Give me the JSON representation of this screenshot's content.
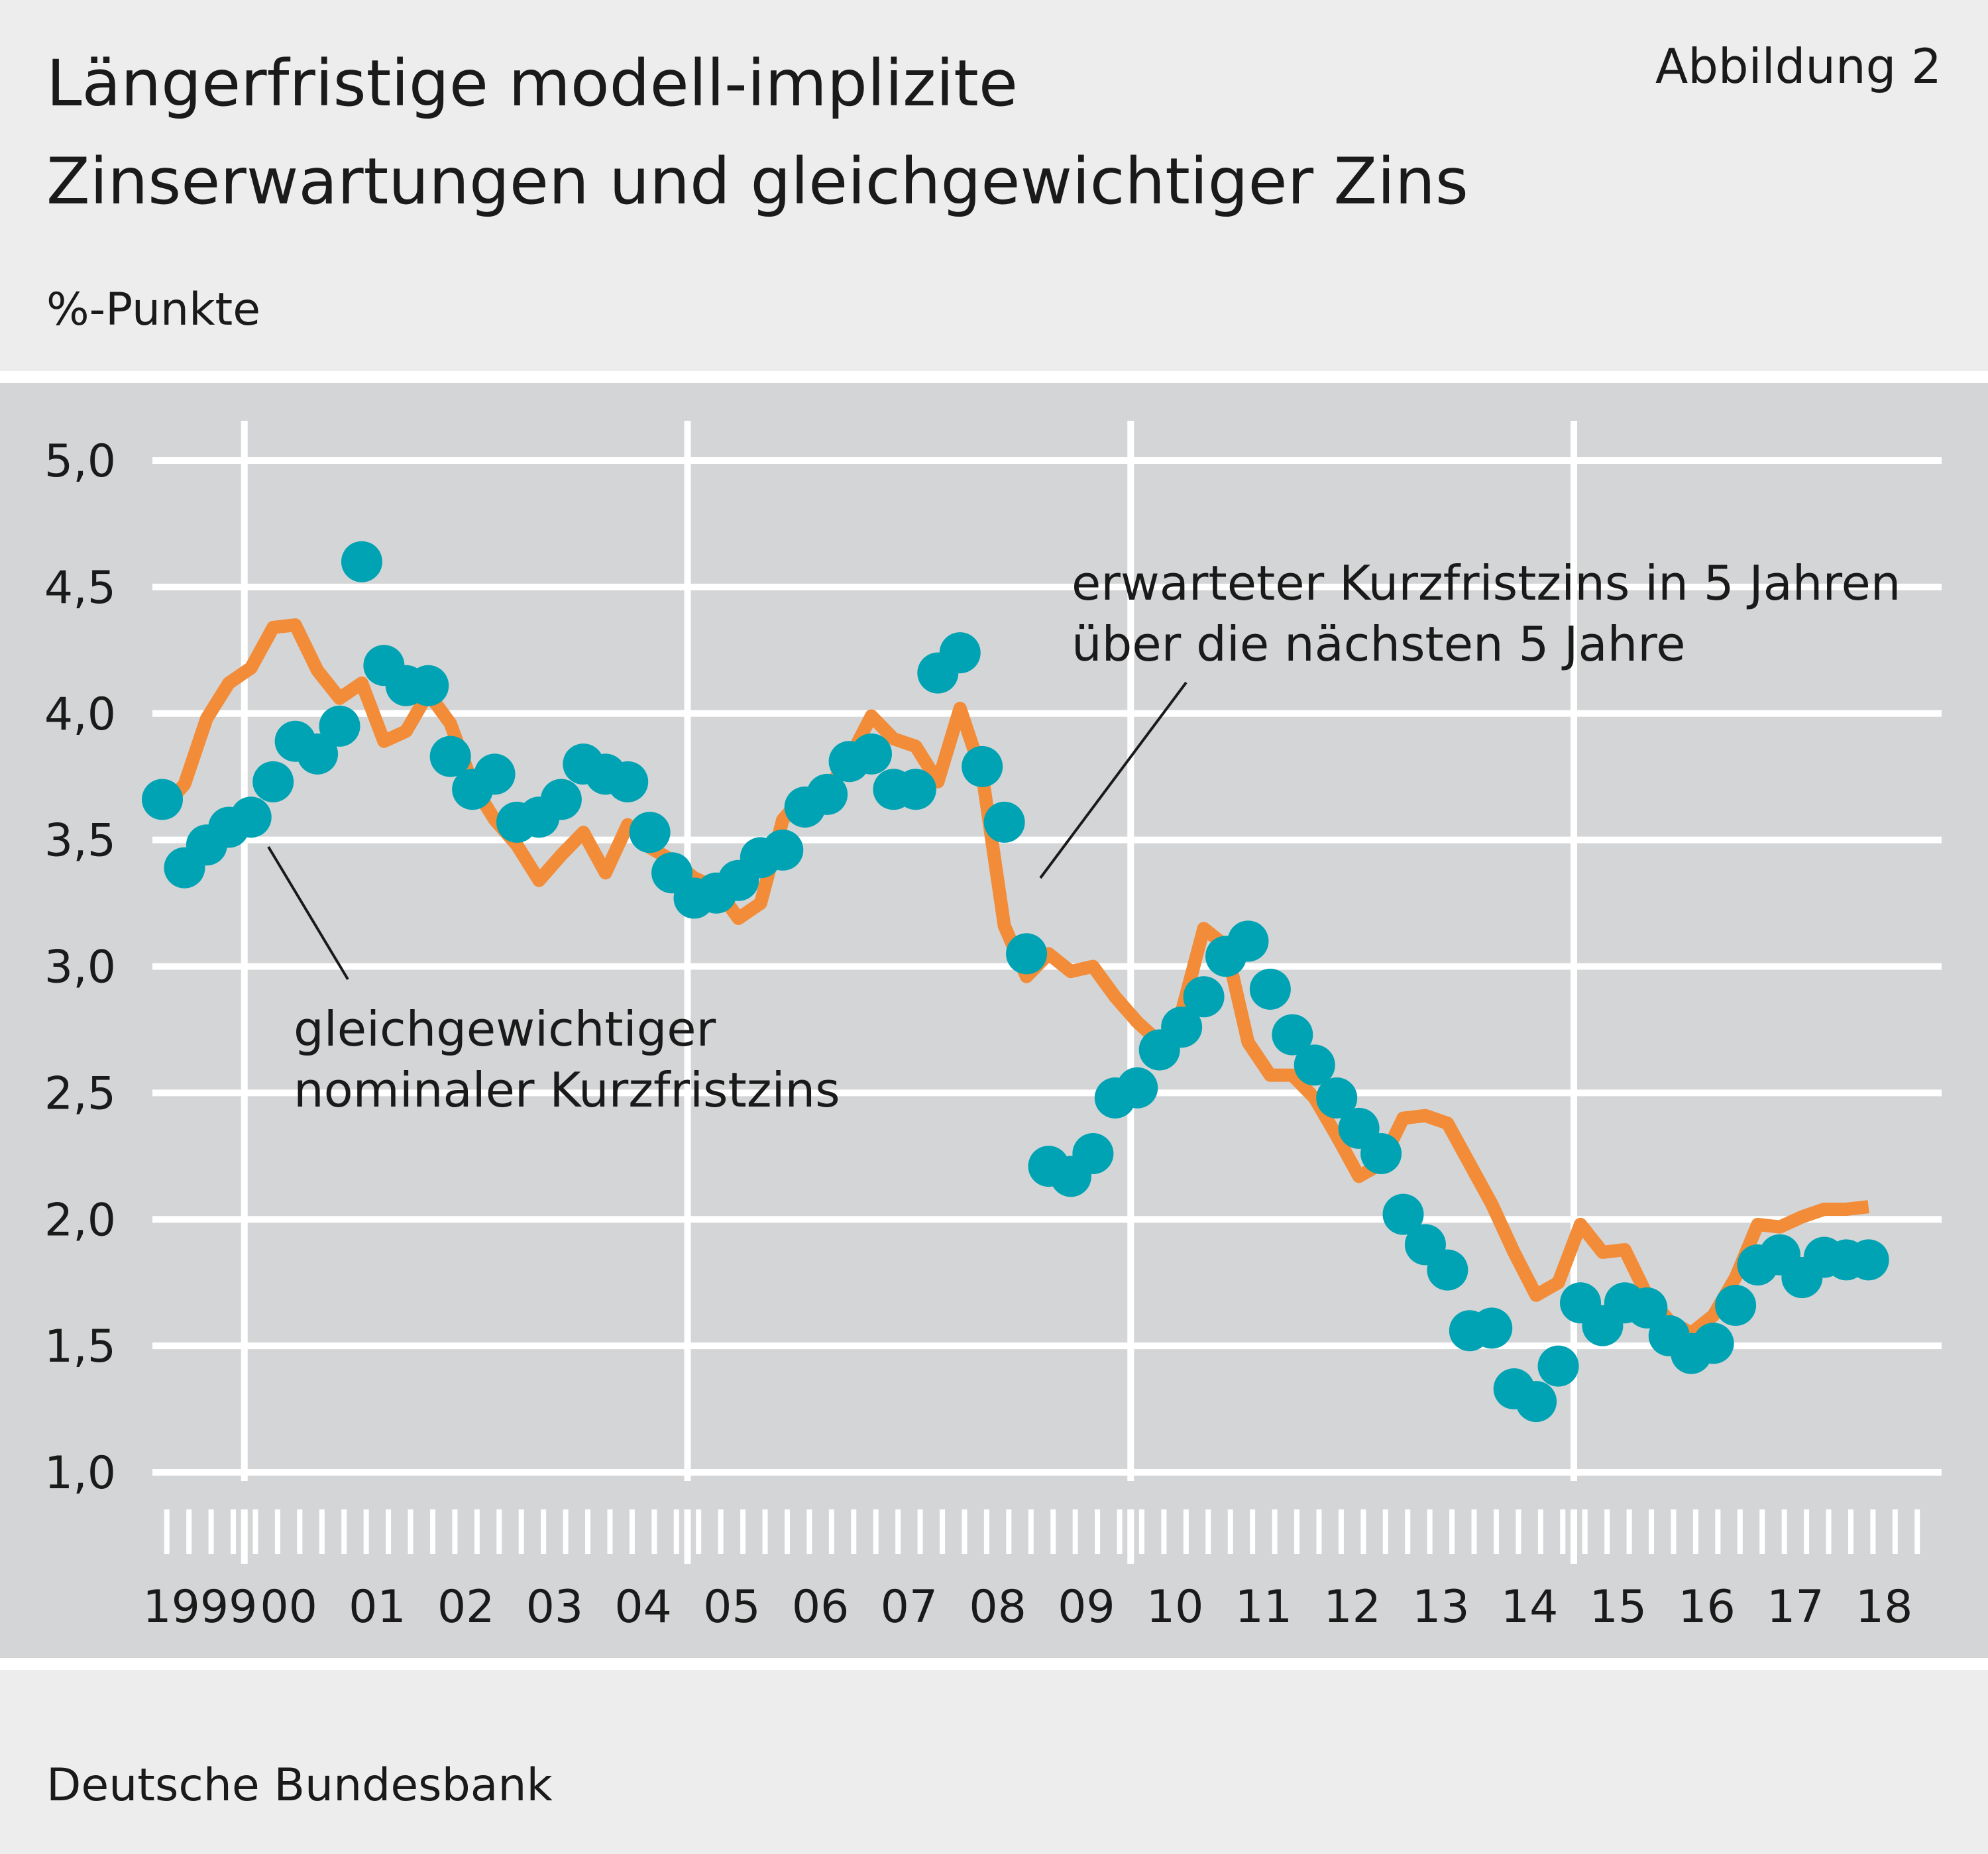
{
  "header": {
    "title": "Längerfristige modell-implizite\nZinserwartungen und gleichgewichtiger Zins",
    "figure_label": "Abbildung 2",
    "unit_label": "%-Punkte"
  },
  "footer": {
    "source": "Deutsche Bundesbank"
  },
  "colors": {
    "background": "#ecedec",
    "plot_background": "#d4d5d6",
    "grid": "#ffffff",
    "expected_rate_line": "#f28c38",
    "equilibrium_rate_dots": "#00a3b4"
  },
  "chart_data": {
    "type": "line",
    "title": "Längerfristige modell-implizite Zinserwartungen und gleichgewichtiger Zins",
    "ylabel": "%-Punkte",
    "ylim": [
      1.0,
      5.0
    ],
    "xlim": [
      1999.0,
      2019.0
    ],
    "grid": true,
    "y_ticks": [
      "1,0",
      "1,5",
      "2,0",
      "2,5",
      "3,0",
      "3,5",
      "4,0",
      "4,5",
      "5,0"
    ],
    "y_tick_values": [
      1.0,
      1.5,
      2.0,
      2.5,
      3.0,
      3.5,
      4.0,
      4.5,
      5.0
    ],
    "x_ticks": [
      "1999",
      "00",
      "01",
      "02",
      "03",
      "04",
      "05",
      "06",
      "07",
      "08",
      "09",
      "10",
      "11",
      "12",
      "13",
      "14",
      "15",
      "16",
      "17",
      "18"
    ],
    "x_tick_values": [
      1999,
      2000,
      2001,
      2002,
      2003,
      2004,
      2005,
      2006,
      2007,
      2008,
      2009,
      2010,
      2011,
      2012,
      2013,
      2014,
      2015,
      2016,
      2017,
      2018
    ],
    "annotations": [
      {
        "text": "erwarteter Kurzfristzins in 5 Jahren\nüber die nächsten 5 Jahre",
        "series": "erwartet"
      },
      {
        "text": "gleichgewichtiger\nnominaler Kurzfristzins",
        "series": "gleichgewicht"
      }
    ],
    "series": [
      {
        "id": "erwartet",
        "style": "line",
        "x": [
          1999.0,
          1999.25,
          1999.5,
          1999.75,
          2000.0,
          2000.25,
          2000.5,
          2000.75,
          2001.0,
          2001.25,
          2001.5,
          2001.75,
          2002.0,
          2002.25,
          2002.5,
          2002.75,
          2003.0,
          2003.25,
          2003.5,
          2003.75,
          2004.0,
          2004.25,
          2004.5,
          2004.75,
          2005.0,
          2005.25,
          2005.5,
          2005.75,
          2006.0,
          2006.25,
          2006.5,
          2006.75,
          2007.0,
          2007.25,
          2007.5,
          2007.75,
          2008.0,
          2008.25,
          2008.5,
          2008.75,
          2009.0,
          2009.25,
          2009.5,
          2009.75,
          2010.0,
          2010.25,
          2010.5,
          2010.75,
          2011.0,
          2011.25,
          2011.5,
          2011.75,
          2012.0,
          2012.25,
          2012.5,
          2012.75,
          2013.0,
          2013.25,
          2013.5,
          2013.75,
          2014.0,
          2014.25,
          2014.5,
          2014.75,
          2015.0,
          2015.25,
          2015.5,
          2015.75,
          2016.0,
          2016.25,
          2016.5,
          2016.75,
          2017.0,
          2017.25,
          2017.5,
          2017.75,
          2018.0,
          2018.25
        ],
        "y": [
          3.62,
          3.72,
          3.98,
          4.12,
          4.18,
          4.34,
          4.35,
          4.17,
          4.06,
          4.12,
          3.89,
          3.93,
          4.08,
          3.96,
          3.72,
          3.58,
          3.48,
          3.34,
          3.44,
          3.53,
          3.37,
          3.56,
          3.47,
          3.42,
          3.35,
          3.31,
          3.19,
          3.25,
          3.58,
          3.68,
          3.7,
          3.82,
          3.99,
          3.9,
          3.87,
          3.73,
          4.02,
          3.76,
          3.16,
          2.96,
          3.05,
          2.98,
          3.0,
          2.88,
          2.78,
          2.7,
          2.82,
          3.15,
          3.08,
          2.7,
          2.57,
          2.57,
          2.48,
          2.33,
          2.17,
          2.22,
          2.4,
          2.41,
          2.38,
          2.22,
          2.06,
          1.87,
          1.7,
          1.75,
          1.98,
          1.87,
          1.88,
          1.7,
          1.6,
          1.55,
          1.62,
          1.77,
          1.98,
          1.97,
          2.01,
          2.04,
          2.04,
          2.05
        ]
      },
      {
        "id": "gleichgewicht",
        "style": "dots",
        "x": [
          1999.0,
          1999.25,
          1999.5,
          1999.75,
          2000.0,
          2000.25,
          2000.5,
          2000.75,
          2001.0,
          2001.25,
          2001.5,
          2001.75,
          2002.0,
          2002.25,
          2002.5,
          2002.75,
          2003.0,
          2003.25,
          2003.5,
          2003.75,
          2004.0,
          2004.25,
          2004.5,
          2004.75,
          2005.0,
          2005.25,
          2005.5,
          2005.75,
          2006.0,
          2006.25,
          2006.5,
          2006.75,
          2007.0,
          2007.25,
          2007.5,
          2007.75,
          2008.0,
          2008.25,
          2008.5,
          2008.75,
          2009.0,
          2009.25,
          2009.5,
          2009.75,
          2010.0,
          2010.25,
          2010.5,
          2010.75,
          2011.0,
          2011.25,
          2011.5,
          2011.75,
          2012.0,
          2012.25,
          2012.5,
          2012.75,
          2013.0,
          2013.25,
          2013.5,
          2013.75,
          2014.0,
          2014.25,
          2014.5,
          2014.75,
          2015.0,
          2015.25,
          2015.5,
          2015.75,
          2016.0,
          2016.25,
          2016.5,
          2016.75,
          2017.0,
          2017.25,
          2017.5,
          2017.75,
          2018.0,
          2018.25
        ],
        "y": [
          3.66,
          3.39,
          3.48,
          3.55,
          3.59,
          3.73,
          3.89,
          3.84,
          3.95,
          4.6,
          4.19,
          4.11,
          4.11,
          3.83,
          3.7,
          3.76,
          3.57,
          3.59,
          3.66,
          3.8,
          3.76,
          3.73,
          3.53,
          3.37,
          3.27,
          3.29,
          3.34,
          3.43,
          3.46,
          3.63,
          3.68,
          3.81,
          3.84,
          3.7,
          3.7,
          4.16,
          4.24,
          3.79,
          3.57,
          3.05,
          2.21,
          2.17,
          2.26,
          2.48,
          2.52,
          2.67,
          2.76,
          2.88,
          3.04,
          3.1,
          2.91,
          2.73,
          2.61,
          2.48,
          2.36,
          2.26,
          2.02,
          1.9,
          1.8,
          1.56,
          1.57,
          1.33,
          1.28,
          1.42,
          1.67,
          1.58,
          1.67,
          1.65,
          1.54,
          1.47,
          1.51,
          1.66,
          1.82,
          1.86,
          1.77,
          1.85,
          1.84,
          1.84
        ]
      }
    ]
  }
}
